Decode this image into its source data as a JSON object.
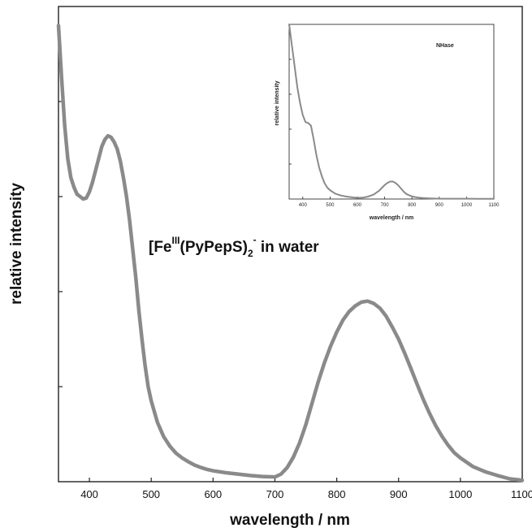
{
  "chart_data": [
    {
      "type": "line",
      "title": "",
      "xlabel": "wavelength / nm",
      "ylabel": "relative intensity",
      "xlim": [
        350,
        1100
      ],
      "ylim": [
        0,
        100
      ],
      "xticks": [
        400,
        500,
        600,
        700,
        800,
        900,
        1000,
        1100
      ],
      "yticks": [
        20,
        40,
        60,
        80
      ],
      "show_y_tick_labels": false,
      "grid": false,
      "line_color": "#8a8a8a",
      "annotation": {
        "prefix": "[Fe",
        "superscript": "III",
        "middle": "(PyPepS)",
        "subscript": "2",
        "charge": "-",
        "suffix": " in water"
      },
      "series": [
        {
          "name": "",
          "x": [
            350,
            355,
            360,
            365,
            370,
            375,
            380,
            385,
            390,
            395,
            400,
            405,
            410,
            415,
            420,
            425,
            430,
            435,
            440,
            445,
            450,
            455,
            460,
            465,
            470,
            475,
            480,
            485,
            490,
            495,
            500,
            510,
            520,
            530,
            540,
            550,
            560,
            570,
            580,
            590,
            600,
            620,
            640,
            660,
            680,
            700,
            710,
            720,
            730,
            740,
            750,
            760,
            770,
            780,
            790,
            800,
            810,
            820,
            830,
            840,
            850,
            860,
            870,
            880,
            890,
            900,
            910,
            920,
            930,
            940,
            950,
            960,
            970,
            980,
            990,
            1000,
            1020,
            1040,
            1060,
            1080,
            1100
          ],
          "values": [
            96,
            85,
            75,
            68,
            64,
            62,
            60.5,
            60,
            59.5,
            59.7,
            61,
            63,
            65.5,
            68,
            70.5,
            72,
            72.8,
            72.5,
            71.5,
            70,
            67.5,
            64,
            60,
            55,
            49,
            43,
            36,
            30,
            24.5,
            20,
            17,
            12.5,
            9.5,
            7.5,
            6,
            5,
            4.2,
            3.5,
            3,
            2.6,
            2.3,
            1.9,
            1.6,
            1.3,
            1.1,
            1,
            1.6,
            3,
            5.2,
            8.2,
            12,
            16.5,
            21,
            25,
            28.5,
            31.5,
            34,
            35.8,
            37,
            37.8,
            38,
            37.5,
            36.5,
            34.8,
            32.5,
            30,
            27,
            23.8,
            20.5,
            17.3,
            14.4,
            11.8,
            9.6,
            7.7,
            6.1,
            5,
            3.2,
            2.1,
            1.3,
            0.6,
            0.3
          ]
        }
      ]
    },
    {
      "type": "line",
      "title": "",
      "xlabel": "wavelength / nm",
      "ylabel": "relative intensity",
      "xlim": [
        350,
        1100
      ],
      "ylim": [
        0,
        100
      ],
      "xticks": [
        400,
        500,
        600,
        700,
        800,
        900,
        1000,
        1100
      ],
      "yticks": [
        20,
        40,
        60,
        80
      ],
      "show_y_tick_labels": false,
      "grid": false,
      "line_color": "#8a8a8a",
      "legend": "NHase",
      "series": [
        {
          "name": "NHase",
          "x": [
            350,
            360,
            370,
            380,
            390,
            400,
            410,
            420,
            430,
            440,
            450,
            460,
            470,
            480,
            490,
            500,
            520,
            540,
            560,
            580,
            600,
            620,
            640,
            660,
            680,
            690,
            700,
            710,
            720,
            730,
            740,
            750,
            760,
            770,
            780,
            800,
            820,
            840,
            860,
            880,
            900,
            950,
            1000,
            1050,
            1100
          ],
          "values": [
            100,
            88,
            76,
            64,
            55,
            48,
            44,
            43.5,
            42,
            34,
            25,
            18,
            13,
            9,
            6.5,
            5,
            3,
            2,
            1.4,
            1,
            0.7,
            0.8,
            1.4,
            2.6,
            4.8,
            6.4,
            8,
            9.2,
            10,
            10,
            9.2,
            7.8,
            6,
            4.2,
            2.8,
            1.5,
            0.9,
            0.6,
            0.4,
            0.3,
            0.2,
            0.2,
            0.2,
            0.1,
            0.1
          ]
        }
      ]
    }
  ]
}
